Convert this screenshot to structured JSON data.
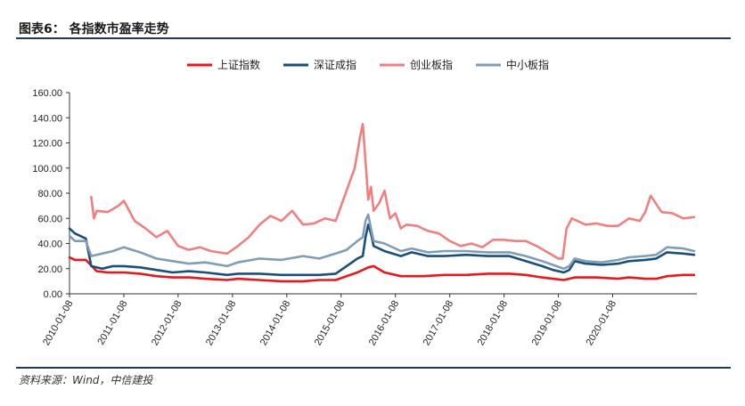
{
  "header": {
    "figure_title": "图表6：  各指数市盈率走势"
  },
  "footer": {
    "source": "资料来源：Wind，中信建投"
  },
  "chart_data": {
    "type": "line",
    "title": "",
    "xlabel": "",
    "ylabel": "",
    "ylim": [
      0,
      160
    ],
    "y_ticks": [
      "0.00",
      "20.00",
      "40.00",
      "60.00",
      "80.00",
      "100.00",
      "120.00",
      "140.00",
      "160.00"
    ],
    "x_ticks": [
      "2010-01-08",
      "2011-01-08",
      "2012-01-08",
      "2013-01-08",
      "2014-01-08",
      "2015-01-08",
      "2016-01-08",
      "2017-01-08",
      "2018-01-08",
      "2019-01-08",
      "2020-01-08"
    ],
    "grid": false,
    "legend_position": "top",
    "series": [
      {
        "name": "上证指数",
        "color": "#e8171d",
        "x": [
          2010.0,
          2010.1,
          2010.3,
          2010.5,
          2010.7,
          2011.0,
          2011.3,
          2011.6,
          2011.9,
          2012.2,
          2012.5,
          2012.9,
          2013.1,
          2013.5,
          2013.9,
          2014.3,
          2014.6,
          2014.9,
          2015.1,
          2015.3,
          2015.4,
          2015.5,
          2015.6,
          2015.8,
          2016.1,
          2016.5,
          2016.9,
          2017.3,
          2017.7,
          2018.1,
          2018.4,
          2018.7,
          2018.9,
          2019.1,
          2019.3,
          2019.7,
          2020.1,
          2020.3,
          2020.6,
          2020.8,
          2021.0,
          2021.3,
          2021.5
        ],
        "y": [
          29,
          27,
          27,
          18,
          17,
          17,
          16,
          14,
          13,
          13,
          12,
          11,
          12,
          11,
          10,
          10,
          11,
          11,
          14,
          17,
          19,
          21,
          22,
          17,
          14,
          14,
          15,
          15,
          16,
          16,
          15,
          13,
          12,
          11,
          13,
          13,
          12,
          13,
          12,
          12,
          14,
          15,
          15
        ]
      },
      {
        "name": "深证成指",
        "color": "#1a4f7a",
        "x": [
          2010.0,
          2010.1,
          2010.3,
          2010.4,
          2010.6,
          2010.8,
          2011.0,
          2011.3,
          2011.6,
          2011.9,
          2012.2,
          2012.5,
          2012.9,
          2013.1,
          2013.5,
          2013.9,
          2014.3,
          2014.6,
          2014.9,
          2015.1,
          2015.3,
          2015.4,
          2015.45,
          2015.5,
          2015.55,
          2015.6,
          2015.8,
          2016.1,
          2016.3,
          2016.6,
          2016.9,
          2017.3,
          2017.7,
          2018.1,
          2018.4,
          2018.7,
          2018.9,
          2019.1,
          2019.2,
          2019.3,
          2019.5,
          2019.8,
          2020.1,
          2020.3,
          2020.6,
          2020.8,
          2021.0,
          2021.3,
          2021.5
        ],
        "y": [
          52,
          48,
          44,
          22,
          20,
          22,
          22,
          21,
          19,
          17,
          18,
          17,
          15,
          16,
          16,
          15,
          15,
          15,
          16,
          22,
          28,
          30,
          45,
          55,
          48,
          38,
          34,
          30,
          33,
          30,
          30,
          31,
          30,
          30,
          26,
          22,
          19,
          17,
          19,
          26,
          24,
          23,
          24,
          26,
          27,
          28,
          33,
          32,
          31
        ]
      },
      {
        "name": "创业板指",
        "color": "#f08080",
        "x": [
          2010.4,
          2010.45,
          2010.5,
          2010.7,
          2010.9,
          2011.0,
          2011.2,
          2011.4,
          2011.6,
          2011.8,
          2012.0,
          2012.2,
          2012.4,
          2012.6,
          2012.9,
          2013.1,
          2013.3,
          2013.5,
          2013.7,
          2013.9,
          2014.1,
          2014.3,
          2014.5,
          2014.7,
          2014.9,
          2015.0,
          2015.15,
          2015.25,
          2015.35,
          2015.4,
          2015.45,
          2015.5,
          2015.55,
          2015.6,
          2015.7,
          2015.8,
          2015.9,
          2016.0,
          2016.1,
          2016.2,
          2016.4,
          2016.6,
          2016.8,
          2017.0,
          2017.2,
          2017.4,
          2017.6,
          2017.8,
          2018.0,
          2018.2,
          2018.4,
          2018.6,
          2018.8,
          2019.0,
          2019.08,
          2019.15,
          2019.25,
          2019.5,
          2019.7,
          2019.9,
          2020.1,
          2020.3,
          2020.5,
          2020.6,
          2020.7,
          2020.9,
          2021.1,
          2021.3,
          2021.5
        ],
        "y": [
          77,
          60,
          66,
          65,
          70,
          74,
          58,
          52,
          45,
          50,
          38,
          35,
          37,
          34,
          32,
          38,
          45,
          55,
          62,
          58,
          66,
          55,
          56,
          60,
          58,
          70,
          88,
          100,
          125,
          135,
          105,
          75,
          85,
          66,
          72,
          82,
          60,
          64,
          52,
          55,
          54,
          50,
          48,
          42,
          38,
          40,
          37,
          43,
          43,
          42,
          42,
          38,
          33,
          28,
          28,
          52,
          60,
          55,
          56,
          54,
          54,
          60,
          58,
          65,
          78,
          65,
          64,
          60,
          61
        ]
      },
      {
        "name": "中小板指",
        "color": "#7f9db9",
        "x": [
          2010.0,
          2010.1,
          2010.3,
          2010.4,
          2010.6,
          2010.8,
          2011.0,
          2011.3,
          2011.6,
          2011.9,
          2012.2,
          2012.5,
          2012.9,
          2013.1,
          2013.5,
          2013.9,
          2014.3,
          2014.6,
          2014.9,
          2015.1,
          2015.3,
          2015.4,
          2015.45,
          2015.5,
          2015.55,
          2015.6,
          2015.8,
          2016.1,
          2016.3,
          2016.6,
          2016.9,
          2017.3,
          2017.7,
          2018.1,
          2018.4,
          2018.7,
          2018.9,
          2019.1,
          2019.2,
          2019.3,
          2019.5,
          2019.8,
          2020.1,
          2020.3,
          2020.6,
          2020.8,
          2021.0,
          2021.3,
          2021.5
        ],
        "y": [
          46,
          42,
          42,
          30,
          32,
          34,
          37,
          33,
          28,
          26,
          24,
          25,
          22,
          25,
          28,
          27,
          30,
          28,
          32,
          35,
          42,
          45,
          58,
          63,
          52,
          42,
          40,
          34,
          36,
          33,
          34,
          34,
          33,
          33,
          30,
          26,
          23,
          20,
          22,
          28,
          26,
          25,
          27,
          29,
          30,
          31,
          37,
          36,
          34
        ]
      }
    ]
  }
}
